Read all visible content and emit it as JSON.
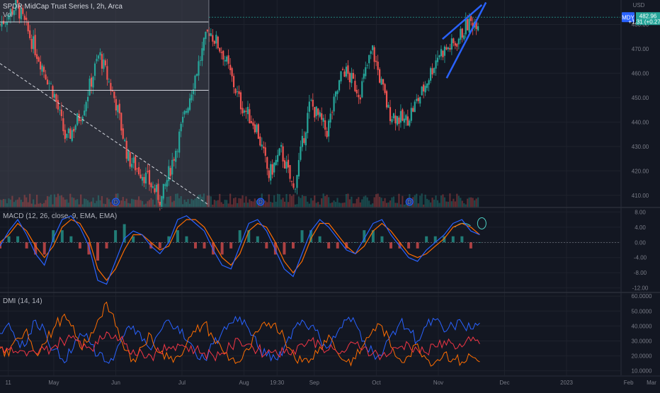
{
  "header": {
    "title": "SPDR MidCap Trust Series I, 2h, Arca",
    "volume_label": "Vol",
    "currency": "USD"
  },
  "price_badge": {
    "symbol": "MDY",
    "price": "482.96",
    "change": "+1.31 (+0.27%)",
    "color": "#26a69a"
  },
  "macd_label": "MACD (12, 26, close, 9, EMA, EMA)",
  "dmi_label": "DMI (14, 14)",
  "time_labels": [
    "11",
    "May",
    "Jun",
    "Jul",
    "Aug",
    "19:30",
    "Sep",
    "Oct",
    "Nov",
    "Dec",
    "2023",
    "Feb",
    "Mar"
  ],
  "dividend_marker": "D",
  "colors": {
    "up": "#26a69a",
    "down": "#ef5350",
    "macd_line": "#2962ff",
    "signal_line": "#ff6d00",
    "hist_up": "#26a69a",
    "hist_down": "#ef5350",
    "dmi_plus": "#2962ff",
    "dmi_minus": "#ff6d00",
    "adx": "#f23645",
    "wedge": "#2962ff",
    "replay_shade": "#434651"
  },
  "chart_data": [
    {
      "type": "candlestick",
      "title": "SPDR MidCap Trust Series I, 2h, Arca",
      "y_ticks": [
        "410.00",
        "420.00",
        "430.00",
        "440.00",
        "450.00",
        "460.00",
        "470.00",
        "480.00"
      ],
      "ylim": [
        405,
        490
      ],
      "x_ticks": [
        "11",
        "May",
        "Jun",
        "Jul",
        "Aug",
        "19:30",
        "Sep",
        "Oct",
        "Nov",
        "Dec",
        "2023",
        "Feb",
        "Mar"
      ],
      "anchors": [
        {
          "t": 0,
          "v": 480
        },
        {
          "t": 8,
          "v": 488
        },
        {
          "t": 16,
          "v": 472
        },
        {
          "t": 26,
          "v": 452
        },
        {
          "t": 32,
          "v": 432
        },
        {
          "t": 40,
          "v": 445
        },
        {
          "t": 48,
          "v": 468
        },
        {
          "t": 56,
          "v": 448
        },
        {
          "t": 62,
          "v": 425
        },
        {
          "t": 70,
          "v": 418
        },
        {
          "t": 78,
          "v": 408
        },
        {
          "t": 86,
          "v": 432
        },
        {
          "t": 94,
          "v": 458
        },
        {
          "t": 101,
          "v": 478
        },
        {
          "t": 108,
          "v": 468
        },
        {
          "t": 116,
          "v": 448
        },
        {
          "t": 124,
          "v": 438
        },
        {
          "t": 130,
          "v": 418
        },
        {
          "t": 136,
          "v": 428
        },
        {
          "t": 142,
          "v": 412
        },
        {
          "t": 150,
          "v": 448
        },
        {
          "t": 158,
          "v": 436
        },
        {
          "t": 166,
          "v": 462
        },
        {
          "t": 174,
          "v": 452
        },
        {
          "t": 180,
          "v": 470
        },
        {
          "t": 188,
          "v": 444
        },
        {
          "t": 196,
          "v": 440
        },
        {
          "t": 204,
          "v": 452
        },
        {
          "t": 212,
          "v": 468
        },
        {
          "t": 220,
          "v": 472
        },
        {
          "t": 226,
          "v": 480
        },
        {
          "t": 232,
          "v": 482
        }
      ],
      "horizontal_lines": [
        481,
        453
      ],
      "trend_line": {
        "from": {
          "t": 0,
          "v": 464
        },
        "to": {
          "t": 101,
          "v": 406
        }
      },
      "wedge_pattern": [
        {
          "from": {
            "t": 214,
            "v": 474
          },
          "to": {
            "t": 233,
            "v": 488
          }
        },
        {
          "from": {
            "t": 216,
            "v": 458
          },
          "to": {
            "t": 235,
            "v": 489
          }
        }
      ],
      "replay_region_end_t": 101,
      "last_price": 482.96
    },
    {
      "type": "bar",
      "title": "MACD (12, 26, close, 9, EMA, EMA)",
      "series": [
        {
          "name": "MACD",
          "values": [
            -1,
            3,
            6,
            2,
            -3,
            -6,
            1,
            6,
            7,
            4,
            -1,
            -10,
            -11,
            -5,
            1,
            3,
            2,
            -1,
            -3,
            0,
            6,
            7,
            5,
            3,
            -2,
            -6,
            -7,
            -1,
            5,
            6,
            3,
            -2,
            -7,
            -9,
            -3,
            3,
            6,
            4,
            1,
            -2,
            -3,
            1,
            5,
            6,
            2,
            -1,
            -4,
            -5,
            -2,
            0,
            2,
            5,
            6,
            3,
            2
          ]
        },
        {
          "name": "Signal",
          "values": [
            0,
            2,
            5,
            3,
            -1,
            -4,
            -1,
            4,
            6,
            5,
            1,
            -7,
            -10,
            -7,
            -2,
            2,
            2,
            0,
            -2,
            -1,
            4,
            6,
            6,
            4,
            0,
            -4,
            -6,
            -3,
            3,
            5,
            4,
            0,
            -5,
            -8,
            -5,
            1,
            5,
            5,
            2,
            -1,
            -3,
            -1,
            3,
            5,
            3,
            0,
            -3,
            -4,
            -3,
            -1,
            1,
            4,
            5,
            4,
            2
          ]
        }
      ],
      "y_ticks": [
        "8.00",
        "4.00",
        "0.00",
        "-4.00",
        "-8.00",
        "-12.00"
      ],
      "ylim": [
        -13,
        9
      ]
    },
    {
      "type": "line",
      "title": "DMI (14, 14)",
      "series": [
        {
          "name": "+DI",
          "values": [
            35,
            42,
            30,
            28,
            44,
            38,
            24,
            18,
            22,
            35,
            30,
            20,
            16,
            22,
            34,
            40,
            30,
            24,
            36,
            44,
            40,
            30,
            22,
            18,
            28,
            36,
            42,
            46,
            38,
            26,
            20,
            18,
            26,
            38,
            44,
            40,
            32,
            26,
            36,
            44,
            42,
            30,
            22,
            20,
            34,
            42,
            38,
            30,
            40,
            44,
            36,
            40,
            42,
            38,
            42
          ]
        },
        {
          "name": "-DI",
          "values": [
            25,
            20,
            32,
            38,
            22,
            28,
            38,
            46,
            40,
            26,
            30,
            44,
            56,
            40,
            24,
            18,
            26,
            34,
            22,
            18,
            20,
            28,
            36,
            42,
            32,
            24,
            18,
            16,
            24,
            36,
            40,
            42,
            32,
            22,
            16,
            18,
            26,
            34,
            22,
            16,
            18,
            28,
            38,
            40,
            26,
            18,
            20,
            28,
            18,
            16,
            22,
            18,
            16,
            20,
            16
          ]
        },
        {
          "name": "ADX",
          "values": [
            26,
            24,
            22,
            20,
            22,
            24,
            26,
            30,
            32,
            30,
            26,
            28,
            36,
            34,
            28,
            24,
            22,
            20,
            22,
            26,
            28,
            26,
            24,
            22,
            20,
            22,
            26,
            30,
            28,
            24,
            22,
            24,
            22,
            24,
            28,
            30,
            28,
            24,
            22,
            24,
            28,
            26,
            22,
            20,
            22,
            26,
            28,
            24,
            22,
            26,
            30,
            28,
            26,
            30,
            28
          ]
        }
      ],
      "y_ticks": [
        "60.0000",
        "50.0000",
        "40.0000",
        "30.0000",
        "20.0000",
        "10.0000"
      ],
      "ylim": [
        7,
        62
      ]
    }
  ]
}
